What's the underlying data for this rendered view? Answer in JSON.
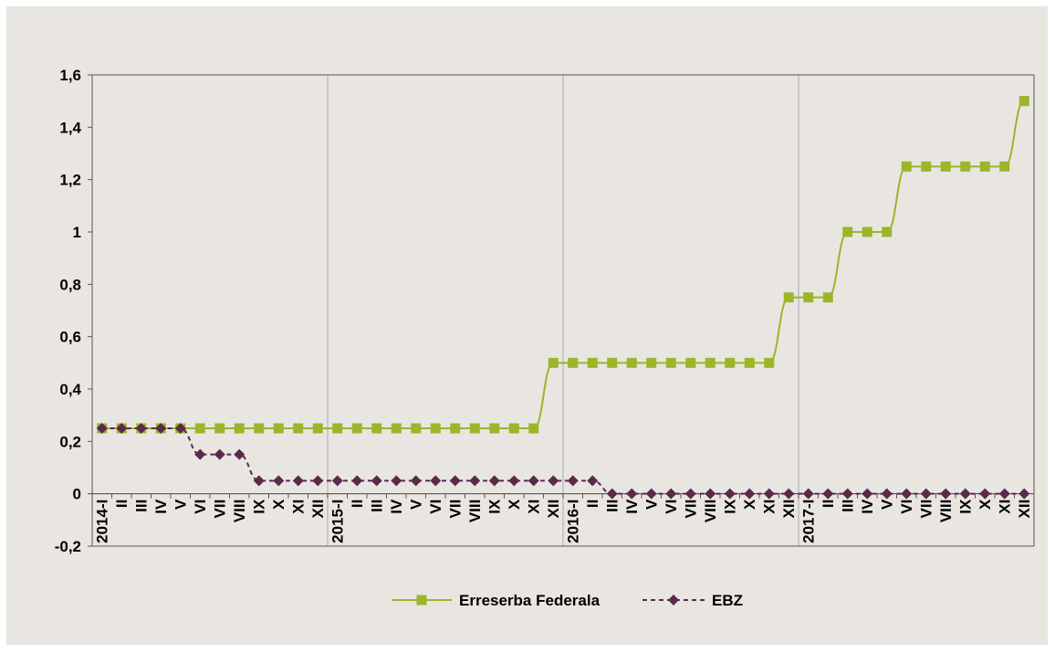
{
  "chart_data": {
    "type": "line",
    "title": "",
    "xlabel": "",
    "ylabel": "",
    "ylim": [
      -0.2,
      1.6
    ],
    "yticks": [
      {
        "v": -0.2,
        "label": "-0,2"
      },
      {
        "v": 0,
        "label": "0"
      },
      {
        "v": 0.2,
        "label": "0,2"
      },
      {
        "v": 0.4,
        "label": "0,4"
      },
      {
        "v": 0.6,
        "label": "0,6"
      },
      {
        "v": 0.8,
        "label": "0,8"
      },
      {
        "v": 1.0,
        "label": "1"
      },
      {
        "v": 1.2,
        "label": "1,2"
      },
      {
        "v": 1.4,
        "label": "1,4"
      },
      {
        "v": 1.6,
        "label": "1,6"
      }
    ],
    "categories": [
      "2014-I",
      "II",
      "III",
      "IV",
      "V",
      "VI",
      "VII",
      "VIII",
      "IX",
      "X",
      "XI",
      "XII",
      "2015-I",
      "II",
      "III",
      "IV",
      "V",
      "VI",
      "VII",
      "VIII",
      "IX",
      "X",
      "XI",
      "XII",
      "2016-I",
      "II",
      "III",
      "IV",
      "V",
      "VI",
      "VII",
      "VIII",
      "IX",
      "X",
      "XI",
      "XII",
      "2017-I",
      "II",
      "III",
      "IV",
      "V",
      "VI",
      "VII",
      "VIII",
      "IX",
      "X",
      "XI",
      "XII"
    ],
    "year_separators": [
      12,
      24,
      36
    ],
    "grid": "vertical at year starts",
    "legend_position": "bottom",
    "series": [
      {
        "name": "Erreserba Federala",
        "color": "#9cb52a",
        "marker": "square",
        "line": "solid",
        "values": [
          0.25,
          0.25,
          0.25,
          0.25,
          0.25,
          0.25,
          0.25,
          0.25,
          0.25,
          0.25,
          0.25,
          0.25,
          0.25,
          0.25,
          0.25,
          0.25,
          0.25,
          0.25,
          0.25,
          0.25,
          0.25,
          0.25,
          0.25,
          0.5,
          0.5,
          0.5,
          0.5,
          0.5,
          0.5,
          0.5,
          0.5,
          0.5,
          0.5,
          0.5,
          0.5,
          0.75,
          0.75,
          0.75,
          1.0,
          1.0,
          1.0,
          1.25,
          1.25,
          1.25,
          1.25,
          1.25,
          1.25,
          1.5
        ]
      },
      {
        "name": "EBZ",
        "color": "#5a2a4a",
        "marker": "diamond",
        "line": "dashed",
        "values": [
          0.25,
          0.25,
          0.25,
          0.25,
          0.25,
          0.15,
          0.15,
          0.15,
          0.05,
          0.05,
          0.05,
          0.05,
          0.05,
          0.05,
          0.05,
          0.05,
          0.05,
          0.05,
          0.05,
          0.05,
          0.05,
          0.05,
          0.05,
          0.05,
          0.05,
          0.05,
          0.0,
          0.0,
          0.0,
          0.0,
          0.0,
          0.0,
          0.0,
          0.0,
          0.0,
          0.0,
          0.0,
          0.0,
          0.0,
          0.0,
          0.0,
          0.0,
          0.0,
          0.0,
          0.0,
          0.0,
          0.0,
          0.0
        ]
      }
    ]
  }
}
